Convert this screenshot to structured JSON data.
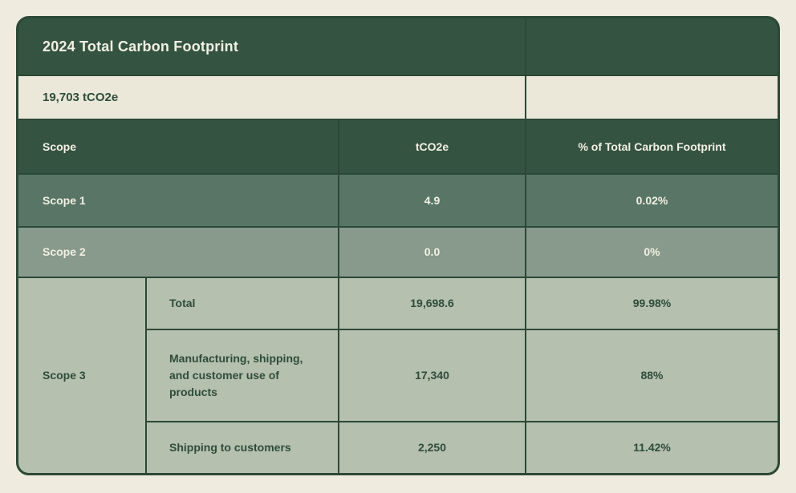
{
  "header": {
    "title": "2024 Total Carbon Footprint",
    "total_value": "19,703 tCO2e"
  },
  "columns": {
    "scope": "Scope",
    "tco2e": "tCO2e",
    "pct": "% of Total Carbon Footprint"
  },
  "scope_rows": [
    {
      "scope": "Scope 1",
      "tco2e": "4.9",
      "pct": "0.02%"
    },
    {
      "scope": "Scope 2",
      "tco2e": "0.0",
      "pct": "0%"
    }
  ],
  "scope3": {
    "label": "Scope 3",
    "rows": [
      {
        "label": "Total",
        "tco2e": "19,698.6",
        "pct": "99.98%"
      },
      {
        "label": "Manufacturing, shipping, and customer use of products",
        "tco2e": "17,340",
        "pct": "88%"
      },
      {
        "label": "Shipping to customers",
        "tco2e": "2,250",
        "pct": "11.42%"
      }
    ]
  },
  "colors": {
    "page_background": "#efecdf",
    "header_green": "#355341",
    "cream": "#ebe8d9",
    "scope1_green": "#587565",
    "scope2_green": "#879a8b",
    "scope3_sage": "#b6c0ae",
    "border_green": "#2c4837",
    "text_light": "#f2f0e4",
    "text_dark": "#2d4c3b"
  },
  "chart_data": {
    "type": "table",
    "title": "2024 Total Carbon Footprint",
    "subtitle": "19,703 tCO2e",
    "columns": [
      "Scope",
      "tCO2e",
      "% of Total Carbon Footprint"
    ],
    "rows": [
      [
        "Scope 1",
        4.9,
        "0.02%"
      ],
      [
        "Scope 2",
        0.0,
        "0%"
      ],
      [
        "Scope 3 - Total",
        19698.6,
        "99.98%"
      ],
      [
        "Scope 3 - Manufacturing, shipping, and customer use of products",
        17340,
        "88%"
      ],
      [
        "Scope 3 - Shipping to customers",
        2250,
        "11.42%"
      ]
    ]
  }
}
